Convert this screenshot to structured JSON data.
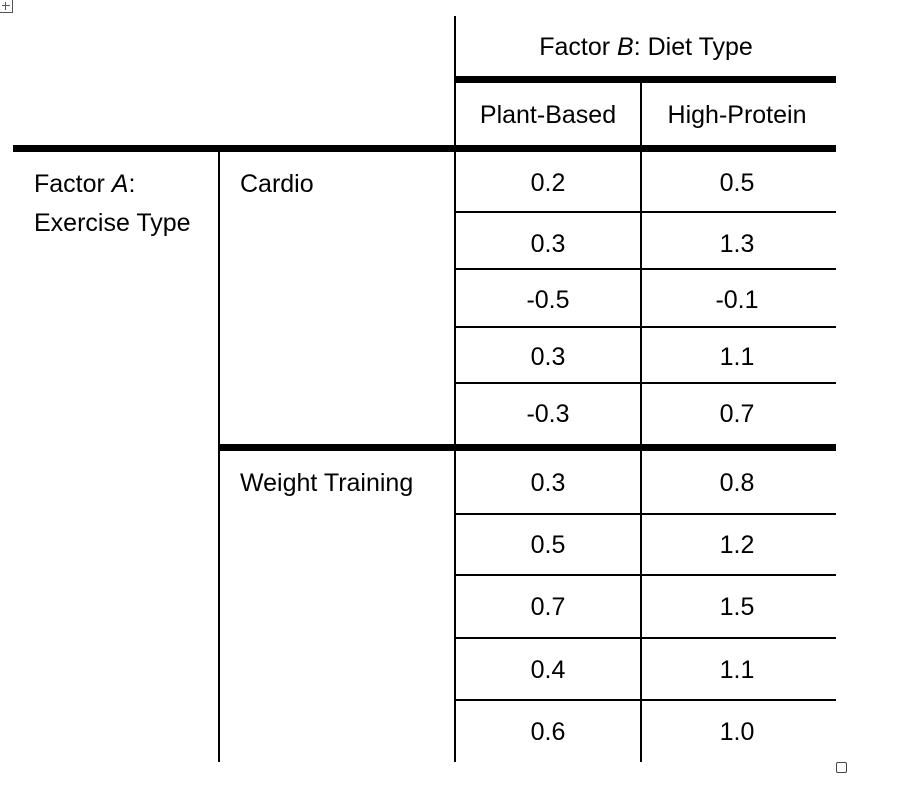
{
  "factor_b": {
    "prefix": "Factor ",
    "letter": "B",
    "suffix": ": Diet Type",
    "columns": [
      "Plant-Based",
      "High-Protein"
    ]
  },
  "factor_a": {
    "prefix": "Factor ",
    "letter": "A",
    "suffix": ":",
    "line2": "Exercise Type"
  },
  "groups": [
    {
      "label": "Cardio",
      "rows": [
        [
          "0.2",
          "0.5"
        ],
        [
          "0.3",
          "1.3"
        ],
        [
          "-0.5",
          "-0.1"
        ],
        [
          "0.3",
          "1.1"
        ],
        [
          "-0.3",
          "0.7"
        ]
      ]
    },
    {
      "label": "Weight Training",
      "rows": [
        [
          "0.3",
          "0.8"
        ],
        [
          "0.5",
          "1.2"
        ],
        [
          "0.7",
          "1.5"
        ],
        [
          "0.4",
          "1.1"
        ],
        [
          "0.6",
          "1.0"
        ]
      ]
    }
  ]
}
